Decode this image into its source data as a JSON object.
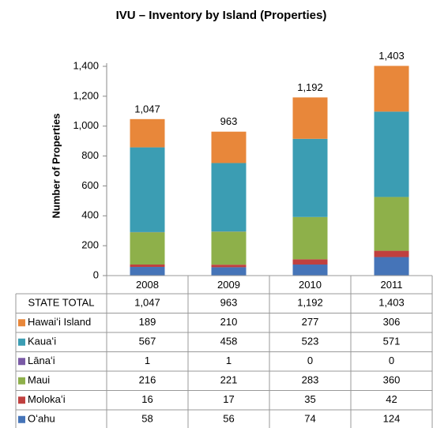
{
  "chart_data": {
    "type": "stacked_bar",
    "title": "IVU – Inventory by Island  (Properties)",
    "y_label": "Number of Properties",
    "categories": [
      "2008",
      "2009",
      "2010",
      "2011"
    ],
    "ylim": [
      0,
      1400
    ],
    "yticks": [
      0,
      200,
      400,
      600,
      800,
      {
        "value": 1000,
        "label": "1,000"
      },
      {
        "value": 1200,
        "label": "1,200"
      },
      {
        "value": 1400,
        "label": "1,400"
      }
    ],
    "totals": {
      "name": "STATE TOTAL",
      "values": [
        1047,
        963,
        1192,
        1403
      ],
      "value_labels": [
        "1,047",
        "963",
        "1,192",
        "1,403"
      ]
    },
    "series": [
      {
        "name": "Hawaiʻi Island",
        "color": "#e8873a",
        "values": [
          189,
          210,
          277,
          306
        ]
      },
      {
        "name": "Kauaʻi",
        "color": "#3b9db3",
        "values": [
          567,
          458,
          523,
          571
        ]
      },
      {
        "name": "Lānaʻi",
        "color": "#7a5aa6",
        "values": [
          1,
          1,
          0,
          0
        ]
      },
      {
        "name": "Maui",
        "color": "#8eb04a",
        "values": [
          216,
          221,
          283,
          360
        ]
      },
      {
        "name": "Molokaʻi",
        "color": "#c0403f",
        "values": [
          16,
          17,
          35,
          42
        ]
      },
      {
        "name": "Oʻahu",
        "color": "#4574b8",
        "values": [
          58,
          56,
          74,
          124
        ]
      }
    ]
  }
}
